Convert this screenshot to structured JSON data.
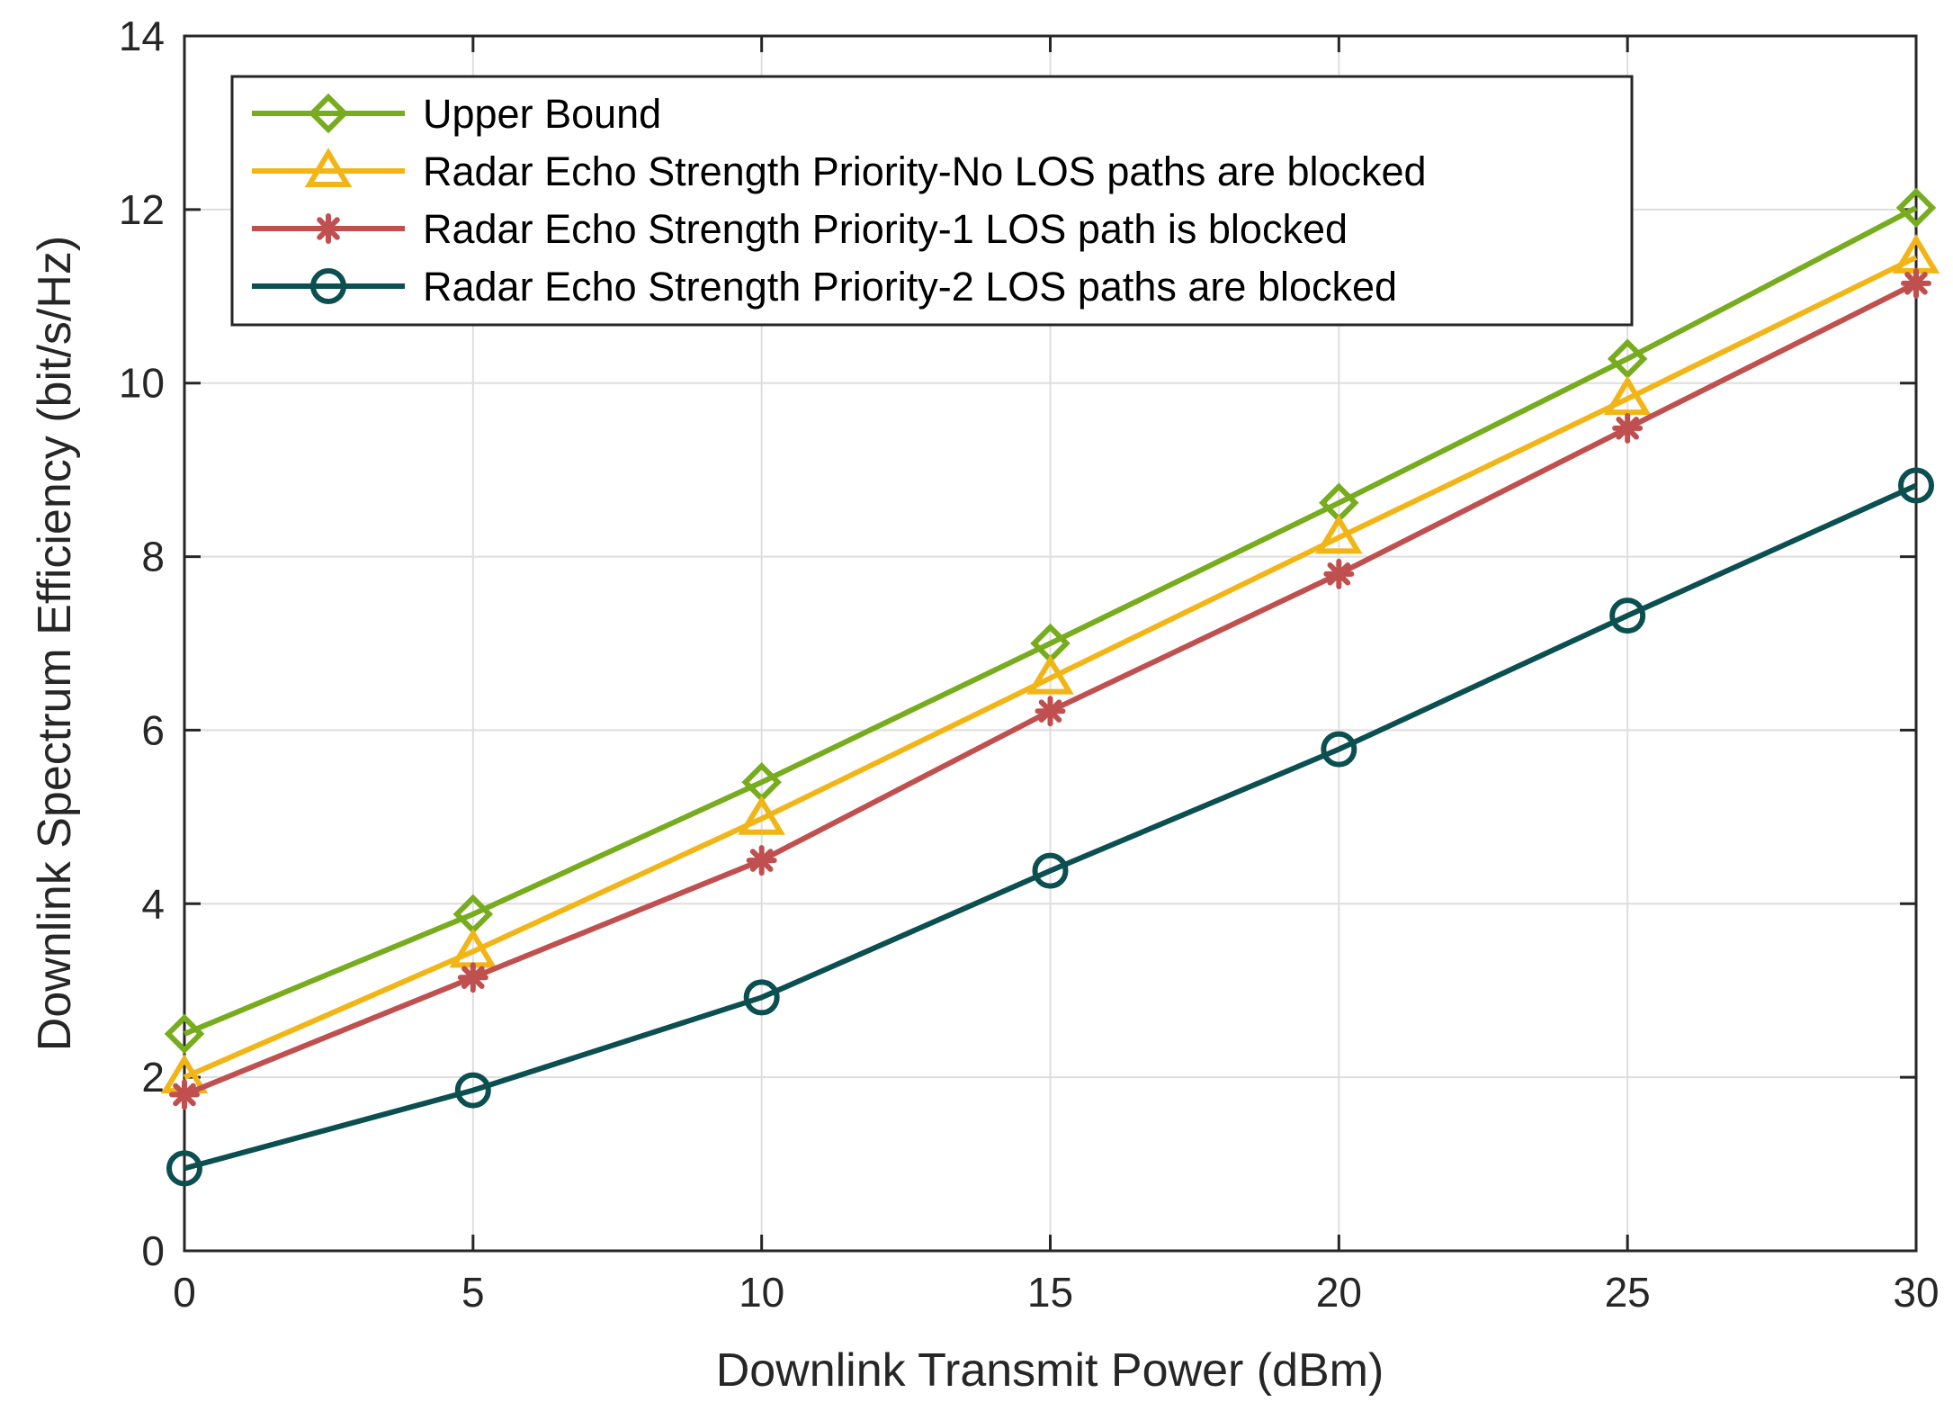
{
  "chart_data": {
    "type": "line",
    "title": "",
    "xlabel": "Downlink Transmit Power (dBm)",
    "ylabel": "Downlink Spectrum Efficiency (bit/s/Hz)",
    "xlim": [
      0,
      30
    ],
    "ylim": [
      0,
      14
    ],
    "xticks": [
      0,
      5,
      10,
      15,
      20,
      25,
      30
    ],
    "yticks": [
      0,
      2,
      4,
      6,
      8,
      10,
      12,
      14
    ],
    "grid": true,
    "legend_position": "top-left",
    "x": [
      0,
      5,
      10,
      15,
      20,
      25,
      30
    ],
    "series": [
      {
        "name": "Upper Bound",
        "color": "#77AC1E",
        "marker": "diamond",
        "values": [
          2.5,
          3.88,
          5.4,
          7.0,
          8.62,
          10.28,
          12.02
        ]
      },
      {
        "name": "Radar Echo Strength Priority-No LOS paths are blocked",
        "color": "#F2B517",
        "marker": "triangle",
        "values": [
          2.0,
          3.45,
          4.98,
          6.6,
          8.22,
          9.82,
          11.45
        ]
      },
      {
        "name": "Radar Echo Strength Priority-1 LOS path is blocked",
        "color": "#C0504F",
        "marker": "asterisk",
        "values": [
          1.8,
          3.15,
          4.5,
          6.22,
          7.8,
          9.48,
          11.15
        ]
      },
      {
        "name": "Radar Echo Strength Priority-2 LOS paths are blocked",
        "color": "#0B4F50",
        "marker": "circle",
        "values": [
          0.95,
          1.85,
          2.92,
          4.38,
          5.78,
          7.32,
          8.82
        ]
      }
    ]
  }
}
